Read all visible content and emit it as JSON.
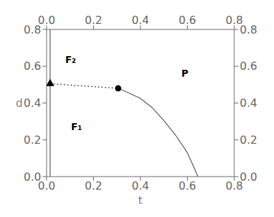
{
  "chart_data": {
    "type": "line",
    "xlabel": "t",
    "ylabel": "d",
    "xlim": [
      0.0,
      0.8
    ],
    "ylim": [
      0.0,
      0.8
    ],
    "xticks": [
      {
        "value": 0.0,
        "label": "0.0"
      },
      0.2,
      0.4,
      0.6,
      0.8
    ],
    "yticks": [
      {
        "value": 0.0,
        "label": "0.0"
      },
      0.2,
      0.4,
      0.6,
      0.8
    ],
    "series": [
      {
        "type": "line",
        "color": "#555555",
        "line_style": "solid",
        "x": [
          0.015,
          0.015
        ],
        "values": [
          0.0,
          0.8
        ]
      },
      {
        "type": "line",
        "color": "#555555",
        "line_style": "dotted",
        "x": [
          0.015,
          0.305
        ],
        "values": [
          0.505,
          0.48
        ]
      },
      {
        "type": "line",
        "color": "#555555",
        "line_style": "solid",
        "x": [
          0.305,
          0.35,
          0.4,
          0.45,
          0.5,
          0.55,
          0.6,
          0.63,
          0.645
        ],
        "values": [
          0.48,
          0.455,
          0.425,
          0.375,
          0.305,
          0.225,
          0.13,
          0.045,
          0.0
        ]
      },
      {
        "type": "scatter",
        "color": "black",
        "marker": "triangle",
        "x": [
          0.015
        ],
        "values": [
          0.505
        ]
      },
      {
        "type": "scatter",
        "color": "black",
        "marker": "circle",
        "x": [
          0.305
        ],
        "values": [
          0.48
        ]
      }
    ],
    "annotations": [
      {
        "text": "F₂",
        "x": 0.065,
        "y": 0.635
      },
      {
        "text": "F₁",
        "x": 0.09,
        "y": 0.27
      },
      {
        "text": "P",
        "x": 0.56,
        "y": 0.56
      }
    ]
  }
}
